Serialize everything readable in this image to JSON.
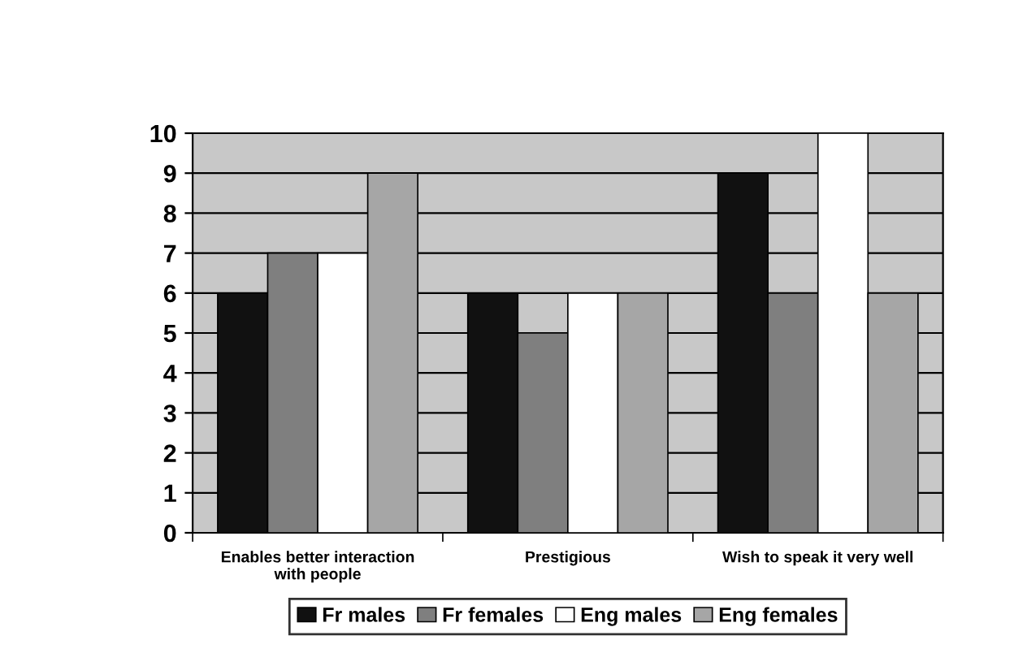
{
  "chart_data": {
    "type": "bar",
    "categories": [
      "Enables better interaction\nwith people",
      "Prestigious",
      "Wish to speak it very well"
    ],
    "series": [
      {
        "name": "Fr males",
        "color": "#111111",
        "values": [
          6,
          6,
          9
        ]
      },
      {
        "name": "Fr females",
        "color": "#7f7f7f",
        "values": [
          7,
          5,
          6
        ]
      },
      {
        "name": "Eng males",
        "color": "#ffffff",
        "values": [
          7,
          6,
          10
        ]
      },
      {
        "name": "Eng females",
        "color": "#a6a6a6",
        "values": [
          9,
          6,
          6
        ]
      }
    ],
    "ylim": [
      0,
      10
    ],
    "yticks": [
      0,
      1,
      2,
      3,
      4,
      5,
      6,
      7,
      8,
      9,
      10
    ],
    "grid": "y",
    "legend": "bottom"
  }
}
